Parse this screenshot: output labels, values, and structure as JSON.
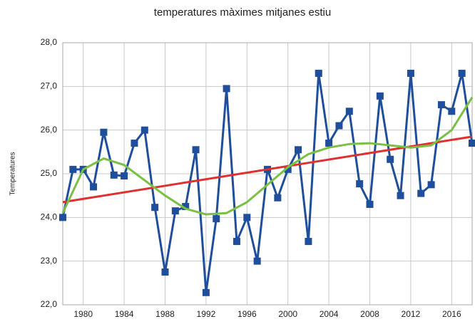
{
  "chart_data": {
    "type": "line",
    "title": "temperatures màximes mitjanes estiu",
    "y_label": "Temperatures",
    "x": [
      1978,
      1979,
      1980,
      1981,
      1982,
      1983,
      1984,
      1985,
      1986,
      1987,
      1988,
      1989,
      1990,
      1991,
      1992,
      1993,
      1994,
      1995,
      1996,
      1997,
      1998,
      1999,
      2000,
      2001,
      2002,
      2003,
      2004,
      2005,
      2006,
      2007,
      2008,
      2009,
      2010,
      2011,
      2012,
      2013,
      2014,
      2015,
      2016,
      2017,
      2018
    ],
    "series": [
      {
        "color": "#1f4e9c",
        "values": [
          24.0,
          25.1,
          25.1,
          24.7,
          25.95,
          24.97,
          24.95,
          25.7,
          26.0,
          24.23,
          22.75,
          24.15,
          24.25,
          25.55,
          22.28,
          23.97,
          26.95,
          23.45,
          24.0,
          23.0,
          25.1,
          24.45,
          25.1,
          25.55,
          23.45,
          27.3,
          25.7,
          26.1,
          26.43,
          24.77,
          24.3,
          26.78,
          25.33,
          24.5,
          27.3,
          24.55,
          24.75,
          26.58,
          26.43,
          27.3,
          25.7
        ],
        "marker": "square"
      },
      {
        "color": "#e03030",
        "x": [
          1978,
          2018
        ],
        "values": [
          24.35,
          25.85
        ]
      },
      {
        "color": "#7ac143",
        "x": [
          1978,
          1980,
          1982,
          1984,
          1986,
          1988,
          1990,
          1992,
          1994,
          1996,
          1998,
          2000,
          2002,
          2004,
          2006,
          2008,
          2010,
          2012,
          2014,
          2016,
          2018
        ],
        "values": [
          24.1,
          25.1,
          25.35,
          25.2,
          24.85,
          24.5,
          24.2,
          24.07,
          24.1,
          24.35,
          24.75,
          25.15,
          25.45,
          25.6,
          25.68,
          25.7,
          25.65,
          25.6,
          25.65,
          26.0,
          26.75
        ]
      }
    ],
    "xlim": [
      1978,
      2018
    ],
    "xticks": [
      1980,
      1984,
      1988,
      1992,
      1996,
      2000,
      2004,
      2008,
      2012,
      2016
    ],
    "ylim": [
      22,
      28
    ],
    "yticks": [
      {
        "value": 22,
        "label": "22,0"
      },
      {
        "value": 23,
        "label": "23,0"
      },
      {
        "value": 24,
        "label": "24,0"
      },
      {
        "value": 25,
        "label": "25,0"
      },
      {
        "value": 26,
        "label": "26,0"
      },
      {
        "value": 27,
        "label": "27,0"
      },
      {
        "value": 28,
        "label": "28,0"
      }
    ],
    "grid": true
  }
}
